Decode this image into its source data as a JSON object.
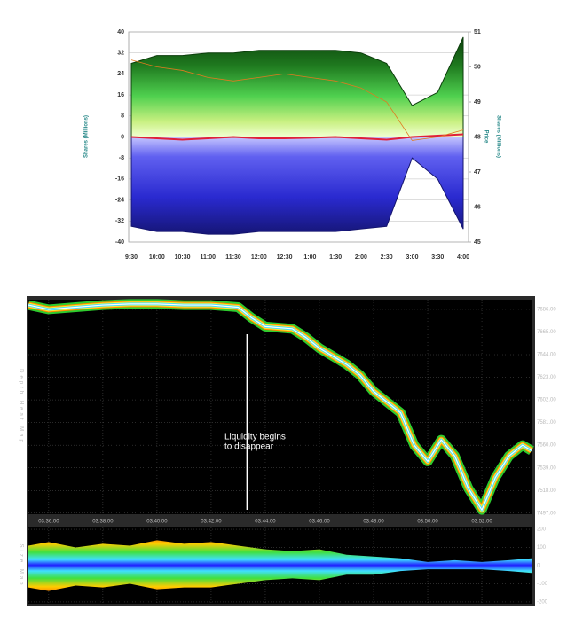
{
  "chart_data": [
    {
      "type": "area",
      "y_label": "Shares (Millions)",
      "y2_label": "Price",
      "y2_label_2": "Shares (Millions)",
      "categories": [
        "9:30",
        "10:00",
        "10:30",
        "11:00",
        "11:30",
        "12:00",
        "12:30",
        "1:00",
        "1:30",
        "2:00",
        "2:30",
        "3:00",
        "3:30",
        "4:00"
      ],
      "series": [
        {
          "type": "area",
          "color": "#0b3d0b",
          "values": [
            28,
            31,
            31,
            32,
            32,
            33,
            33,
            33,
            33,
            32,
            28,
            12,
            17,
            38
          ]
        },
        {
          "type": "area",
          "color": "#14146e",
          "values": [
            -34,
            -36,
            -36,
            -37,
            -37,
            -36,
            -36,
            -36,
            -36,
            -35,
            -34,
            -8,
            -16,
            -35
          ]
        },
        {
          "type": "line",
          "color": "#e0203a",
          "values": [
            0,
            -0.5,
            -1,
            -0.5,
            0,
            -0.5,
            -0.5,
            -0.3,
            0,
            -0.5,
            -1,
            0,
            0.5,
            1
          ]
        },
        {
          "type": "line",
          "color": "#e07a20",
          "axis": "y2",
          "values": [
            50.2,
            50.0,
            49.9,
            49.7,
            49.6,
            49.7,
            49.8,
            49.7,
            49.6,
            49.4,
            49.0,
            47.9,
            48.0,
            48.2
          ]
        }
      ],
      "ylim": [
        -40,
        40
      ],
      "yticks": [
        -40,
        -32,
        -24,
        -16,
        -8,
        0,
        8,
        16,
        24,
        32,
        40
      ],
      "y2lim": [
        45,
        51
      ],
      "y2ticks": [
        45,
        46,
        47,
        48,
        49,
        50,
        51
      ],
      "grid": true
    },
    {
      "type": "line",
      "y_label": "Depth Heat Map",
      "x": [
        "03:35:15",
        "03:36:00",
        "03:37:00",
        "03:38:00",
        "03:39:00",
        "03:40:00",
        "03:41:00",
        "03:42:00",
        "03:43:00",
        "03:43:30",
        "03:44:00",
        "03:45:00",
        "03:45:30",
        "03:46:00",
        "03:47:00",
        "03:47:30",
        "03:48:00",
        "03:48:30",
        "03:49:00",
        "03:49:30",
        "03:50:00",
        "03:50:30",
        "03:51:00",
        "03:51:30",
        "03:52:00",
        "03:52:30",
        "03:53:00",
        "03:53:30",
        "03:53:50"
      ],
      "values": [
        7690,
        7686,
        7688,
        7690,
        7691,
        7691,
        7690,
        7690,
        7688,
        7678,
        7670,
        7668,
        7660,
        7650,
        7635,
        7625,
        7610,
        7600,
        7590,
        7560,
        7545,
        7565,
        7550,
        7520,
        7500,
        7530,
        7550,
        7560,
        7555
      ],
      "color": "#ffffff",
      "xlim": [
        "03:35:15",
        "03:53:52"
      ],
      "xticks": [
        "03:36:00",
        "03:38:00",
        "03:40:00",
        "03:42:00",
        "03:44:00",
        "03:46:00",
        "03:48:00",
        "03:50:00",
        "03:52:00"
      ],
      "ylim": [
        7496,
        7695
      ],
      "yticks": [
        {
          "value": 7497,
          "label": "7497.00"
        },
        {
          "value": 7518,
          "label": "7518.00"
        },
        {
          "value": 7539,
          "label": "7539.00"
        },
        {
          "value": 7560,
          "label": "7560.00"
        },
        {
          "value": 7581,
          "label": "7581.00"
        },
        {
          "value": 7602,
          "label": "7602.00"
        },
        {
          "value": 7623,
          "label": "7623.00"
        },
        {
          "value": 7644,
          "label": "7644.00"
        },
        {
          "value": 7665,
          "label": "7665.00"
        },
        {
          "value": 7686,
          "label": "7686.00"
        }
      ],
      "grid": true,
      "annotation": {
        "text": [
          "Liquidity begins",
          "to disappear"
        ],
        "x": "03:43:20"
      }
    },
    {
      "type": "area",
      "y_label": "Size Map",
      "x": [
        "03:35:15",
        "03:36:00",
        "03:37:00",
        "03:38:00",
        "03:39:00",
        "03:40:00",
        "03:41:00",
        "03:42:00",
        "03:43:00",
        "03:44:00",
        "03:45:00",
        "03:46:00",
        "03:47:00",
        "03:48:00",
        "03:49:00",
        "03:50:00",
        "03:51:00",
        "03:52:00",
        "03:53:00",
        "03:53:50"
      ],
      "series": [
        {
          "values": [
            110,
            130,
            100,
            120,
            110,
            140,
            120,
            130,
            110,
            90,
            80,
            90,
            60,
            50,
            40,
            20,
            30,
            20,
            30,
            40
          ]
        },
        {
          "values": [
            -120,
            -140,
            -110,
            -120,
            -100,
            -130,
            -120,
            -120,
            -100,
            -80,
            -70,
            -80,
            -50,
            -50,
            -30,
            -20,
            -20,
            -20,
            -30,
            -40
          ]
        }
      ],
      "xlim": [
        "03:35:15",
        "03:53:52"
      ],
      "ylim": [
        -210,
        210
      ],
      "yticks": [
        200,
        100,
        0,
        -100,
        -200
      ],
      "grid": true
    }
  ]
}
